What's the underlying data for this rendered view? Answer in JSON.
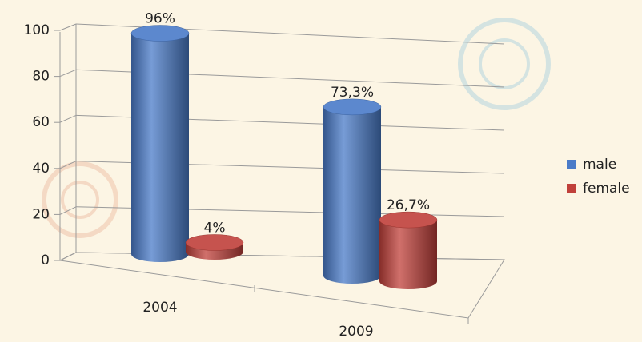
{
  "chart_data": {
    "type": "bar3d",
    "categories": [
      "2004",
      "2009"
    ],
    "series": [
      {
        "name": "male",
        "color": "#4a7bc8",
        "values": [
          96,
          73.3
        ],
        "value_labels": [
          "96%",
          "73,3%"
        ]
      },
      {
        "name": "female",
        "color": "#c0403a",
        "values": [
          4,
          26.7
        ],
        "value_labels": [
          "4%",
          "26,7%"
        ]
      }
    ],
    "ylim": [
      0,
      100
    ],
    "yticks": [
      0,
      20,
      40,
      60,
      80,
      100
    ],
    "grid": true,
    "legend": "right"
  }
}
